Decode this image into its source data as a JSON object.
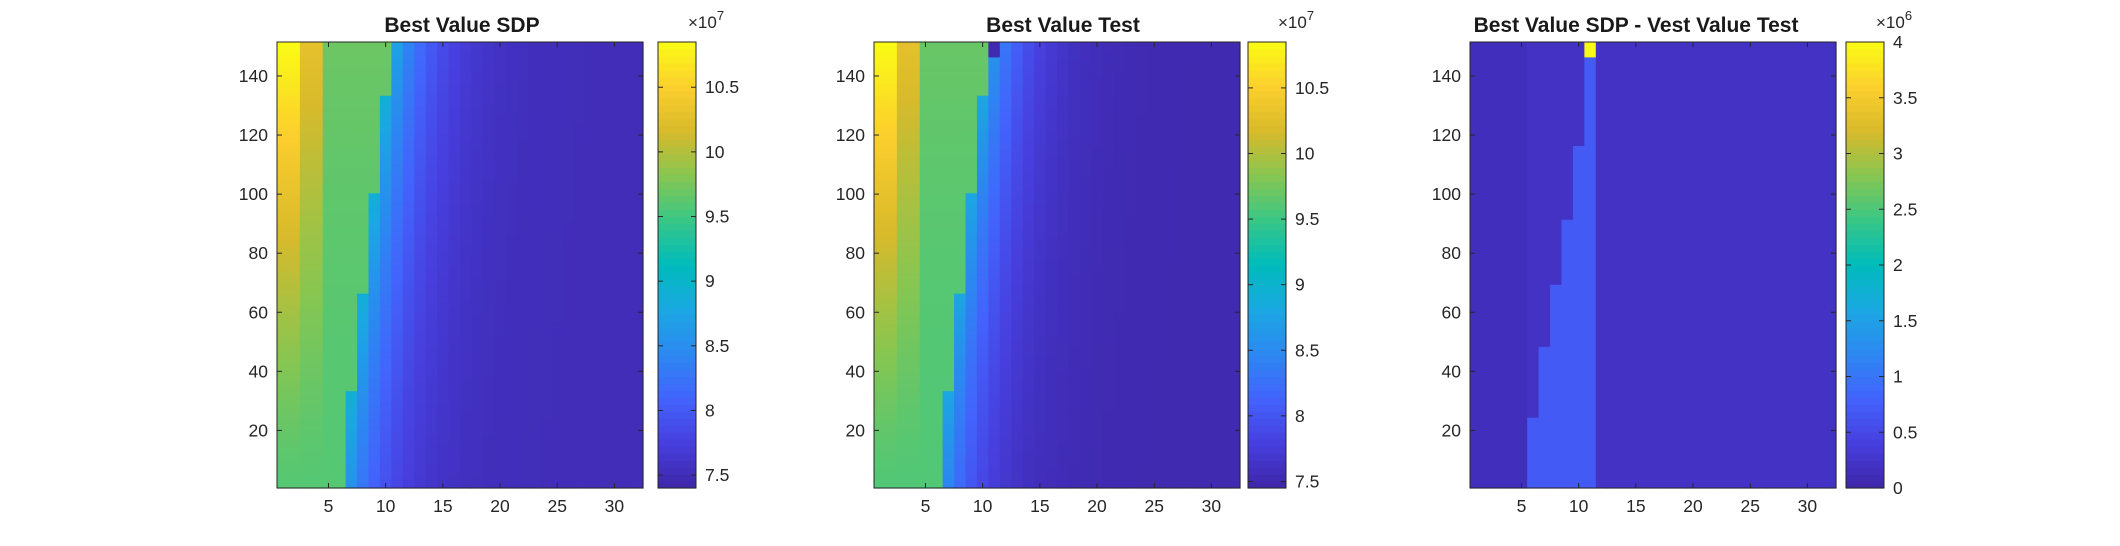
{
  "chart_data": [
    {
      "type": "heatmap",
      "title": "Best Value SDP",
      "xlabel": "",
      "ylabel": "",
      "xlim": [
        0.5,
        32.5
      ],
      "ylim": [
        0.5,
        151.5
      ],
      "xticks": [
        5,
        10,
        15,
        20,
        25,
        30
      ],
      "yticks": [
        20,
        40,
        60,
        80,
        100,
        120,
        140
      ],
      "colorbar": {
        "clim": [
          74000000,
          108500000
        ],
        "ticks": [
          7.5,
          8,
          8.5,
          9,
          9.5,
          10,
          10.5
        ],
        "multiplier": "×10",
        "exponent": "7"
      },
      "colormap": "parula",
      "surface": {
        "yellow_columns": 2,
        "orange_columns": 2,
        "green_plateau": 96000000,
        "ramp_start_column": 6,
        "ramp_shift_per_y": 0.03,
        "ramp_low": 89000000,
        "ramp_decay": 0.3,
        "floor_value": 75000000,
        "top_peak": 108500000
      }
    },
    {
      "type": "heatmap",
      "title": "Best Value Test",
      "xlabel": "",
      "ylabel": "",
      "xlim": [
        0.5,
        32.5
      ],
      "ylim": [
        0.5,
        151.5
      ],
      "xticks": [
        5,
        10,
        15,
        20,
        25,
        30
      ],
      "yticks": [
        20,
        40,
        60,
        80,
        100,
        120,
        140
      ],
      "colorbar": {
        "clim": [
          74500000,
          108500000
        ],
        "ticks": [
          7.5,
          8,
          8.5,
          9,
          9.5,
          10,
          10.5
        ],
        "multiplier": "×10",
        "exponent": "7"
      },
      "colormap": "parula",
      "surface": {
        "yellow_columns": 2,
        "orange_columns": 2,
        "green_plateau": 96000000,
        "ramp_start_column": 6,
        "ramp_shift_per_y": 0.03,
        "ramp_low": 88000000,
        "ramp_decay": 0.32,
        "floor_value": 75000000,
        "top_peak": 108500000,
        "outlier": {
          "x": 11,
          "y_from": 147,
          "y_to": 151,
          "value": 75000000
        }
      }
    },
    {
      "type": "heatmap",
      "title": "Best Value SDP - Vest Value Test",
      "xlabel": "",
      "ylabel": "",
      "xlim": [
        0.5,
        32.5
      ],
      "ylim": [
        0.5,
        151.5
      ],
      "xticks": [
        5,
        10,
        15,
        20,
        25,
        30
      ],
      "yticks": [
        20,
        40,
        60,
        80,
        100,
        120,
        140
      ],
      "colorbar": {
        "clim": [
          0,
          4000000
        ],
        "ticks": [
          0,
          0.5,
          1,
          1.5,
          2,
          2.5,
          3,
          3.5,
          4
        ],
        "multiplier": "×10",
        "exponent": "6"
      },
      "colormap": "parula",
      "difference": {
        "boundary": [
          {
            "x": 5,
            "y_max": 0
          },
          {
            "x": 6,
            "y_max": 24
          },
          {
            "x": 7,
            "y_max": 48
          },
          {
            "x": 8,
            "y_max": 69
          },
          {
            "x": 9,
            "y_max": 91
          },
          {
            "x": 10,
            "y_max": 116
          },
          {
            "x": 11,
            "y_max": 151
          }
        ],
        "band_value": 700000,
        "right_value": 200000,
        "left_value": 150000,
        "outlier": {
          "x": 11,
          "y_from": 147,
          "y_to": 151,
          "value": 4000000
        }
      }
    }
  ]
}
